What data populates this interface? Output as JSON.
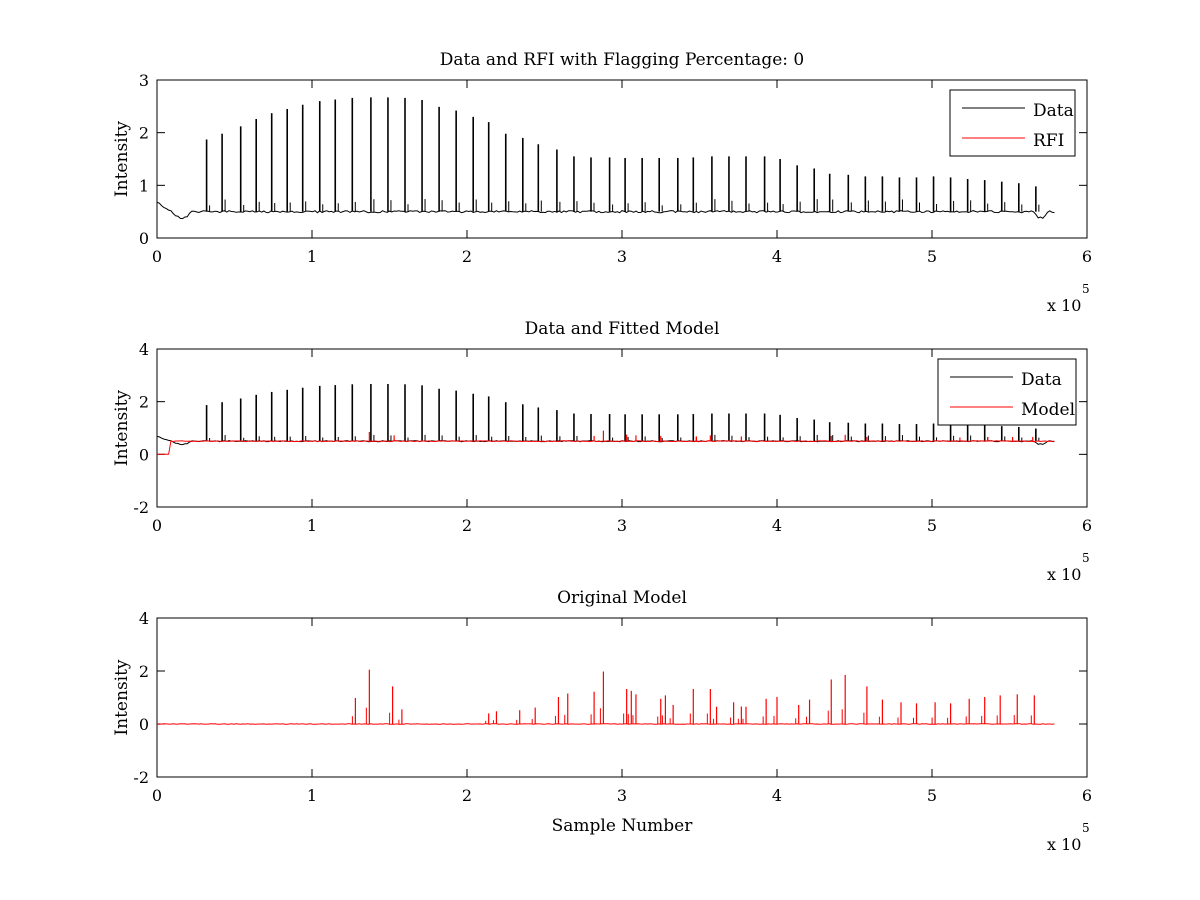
{
  "chart_data": [
    {
      "type": "line",
      "title": "Data and RFI with Flagging Percentage: 0",
      "xlabel": "",
      "ylabel": "Intensity",
      "xlim": [
        0,
        600000
      ],
      "ylim": [
        0,
        3
      ],
      "xticks": [
        "0",
        "1",
        "2",
        "3",
        "4",
        "5",
        "6"
      ],
      "yticks": [
        "0",
        "1",
        "2",
        "3"
      ],
      "x_multiplier_label": "x 10",
      "x_multiplier_exponent": "5",
      "grid": false,
      "legend_position": "top-right",
      "series": [
        {
          "name": "Data",
          "color": "#000000",
          "baseline": 0.5,
          "peaks": [
            {
              "x": 32000,
              "y": 1.87
            },
            {
              "x": 42000,
              "y": 1.98
            },
            {
              "x": 54000,
              "y": 2.12
            },
            {
              "x": 64000,
              "y": 2.26
            },
            {
              "x": 74000,
              "y": 2.37
            },
            {
              "x": 84000,
              "y": 2.45
            },
            {
              "x": 94000,
              "y": 2.53
            },
            {
              "x": 105000,
              "y": 2.6
            },
            {
              "x": 115000,
              "y": 2.63
            },
            {
              "x": 126000,
              "y": 2.66
            },
            {
              "x": 138000,
              "y": 2.67
            },
            {
              "x": 149000,
              "y": 2.67
            },
            {
              "x": 160000,
              "y": 2.66
            },
            {
              "x": 171000,
              "y": 2.62
            },
            {
              "x": 182000,
              "y": 2.49
            },
            {
              "x": 193000,
              "y": 2.42
            },
            {
              "x": 204000,
              "y": 2.3
            },
            {
              "x": 214000,
              "y": 2.2
            },
            {
              "x": 225000,
              "y": 1.98
            },
            {
              "x": 236000,
              "y": 1.9
            },
            {
              "x": 246000,
              "y": 1.78
            },
            {
              "x": 258000,
              "y": 1.68
            },
            {
              "x": 269000,
              "y": 1.55
            },
            {
              "x": 280000,
              "y": 1.53
            },
            {
              "x": 292000,
              "y": 1.53
            },
            {
              "x": 302000,
              "y": 1.52
            },
            {
              "x": 313000,
              "y": 1.52
            },
            {
              "x": 324000,
              "y": 1.52
            },
            {
              "x": 336000,
              "y": 1.52
            },
            {
              "x": 346000,
              "y": 1.53
            },
            {
              "x": 358000,
              "y": 1.55
            },
            {
              "x": 369000,
              "y": 1.55
            },
            {
              "x": 380000,
              "y": 1.55
            },
            {
              "x": 392000,
              "y": 1.55
            },
            {
              "x": 402000,
              "y": 1.5
            },
            {
              "x": 413000,
              "y": 1.38
            },
            {
              "x": 424000,
              "y": 1.32
            },
            {
              "x": 434000,
              "y": 1.22
            },
            {
              "x": 446000,
              "y": 1.2
            },
            {
              "x": 457000,
              "y": 1.17
            },
            {
              "x": 468000,
              "y": 1.17
            },
            {
              "x": 479000,
              "y": 1.15
            },
            {
              "x": 490000,
              "y": 1.15
            },
            {
              "x": 501000,
              "y": 1.17
            },
            {
              "x": 512000,
              "y": 1.15
            },
            {
              "x": 523000,
              "y": 1.12
            },
            {
              "x": 534000,
              "y": 1.1
            },
            {
              "x": 545000,
              "y": 1.07
            },
            {
              "x": 556000,
              "y": 1.04
            },
            {
              "x": 567000,
              "y": 0.98
            }
          ]
        },
        {
          "name": "RFI",
          "color": "#ff0000",
          "peaks": []
        }
      ]
    },
    {
      "type": "line",
      "title": "Data and Fitted Model",
      "xlabel": "",
      "ylabel": "Intensity",
      "xlim": [
        0,
        600000
      ],
      "ylim": [
        -2,
        4
      ],
      "xticks": [
        "0",
        "1",
        "2",
        "3",
        "4",
        "5",
        "6"
      ],
      "yticks": [
        "-2",
        "0",
        "2",
        "4"
      ],
      "x_multiplier_label": "x 10",
      "x_multiplier_exponent": "5",
      "grid": false,
      "legend_position": "top-right",
      "series": [
        {
          "name": "Data",
          "color": "#000000",
          "baseline": 0.5,
          "peaks": [
            {
              "x": 32000,
              "y": 1.87
            },
            {
              "x": 42000,
              "y": 1.98
            },
            {
              "x": 54000,
              "y": 2.12
            },
            {
              "x": 64000,
              "y": 2.26
            },
            {
              "x": 74000,
              "y": 2.37
            },
            {
              "x": 84000,
              "y": 2.45
            },
            {
              "x": 94000,
              "y": 2.53
            },
            {
              "x": 105000,
              "y": 2.6
            },
            {
              "x": 115000,
              "y": 2.63
            },
            {
              "x": 126000,
              "y": 2.66
            },
            {
              "x": 138000,
              "y": 2.67
            },
            {
              "x": 149000,
              "y": 2.67
            },
            {
              "x": 160000,
              "y": 2.66
            },
            {
              "x": 171000,
              "y": 2.62
            },
            {
              "x": 182000,
              "y": 2.49
            },
            {
              "x": 193000,
              "y": 2.42
            },
            {
              "x": 204000,
              "y": 2.3
            },
            {
              "x": 214000,
              "y": 2.2
            },
            {
              "x": 225000,
              "y": 1.98
            },
            {
              "x": 236000,
              "y": 1.9
            },
            {
              "x": 246000,
              "y": 1.78
            },
            {
              "x": 258000,
              "y": 1.68
            },
            {
              "x": 269000,
              "y": 1.55
            },
            {
              "x": 280000,
              "y": 1.53
            },
            {
              "x": 292000,
              "y": 1.53
            },
            {
              "x": 302000,
              "y": 1.52
            },
            {
              "x": 313000,
              "y": 1.52
            },
            {
              "x": 324000,
              "y": 1.52
            },
            {
              "x": 336000,
              "y": 1.52
            },
            {
              "x": 346000,
              "y": 1.53
            },
            {
              "x": 358000,
              "y": 1.55
            },
            {
              "x": 369000,
              "y": 1.55
            },
            {
              "x": 380000,
              "y": 1.55
            },
            {
              "x": 392000,
              "y": 1.55
            },
            {
              "x": 402000,
              "y": 1.5
            },
            {
              "x": 413000,
              "y": 1.38
            },
            {
              "x": 424000,
              "y": 1.32
            },
            {
              "x": 434000,
              "y": 1.22
            },
            {
              "x": 446000,
              "y": 1.2
            },
            {
              "x": 457000,
              "y": 1.17
            },
            {
              "x": 468000,
              "y": 1.17
            },
            {
              "x": 479000,
              "y": 1.15
            },
            {
              "x": 490000,
              "y": 1.15
            },
            {
              "x": 501000,
              "y": 1.17
            },
            {
              "x": 512000,
              "y": 1.15
            },
            {
              "x": 523000,
              "y": 1.12
            },
            {
              "x": 534000,
              "y": 1.1
            },
            {
              "x": 545000,
              "y": 1.07
            },
            {
              "x": 556000,
              "y": 1.04
            },
            {
              "x": 567000,
              "y": 0.98
            }
          ]
        },
        {
          "name": "Model",
          "color": "#ff0000",
          "baseline": 0.5,
          "peaks": [
            {
              "x": 137000,
              "y": 0.85
            },
            {
              "x": 153000,
              "y": 0.72
            },
            {
              "x": 282000,
              "y": 0.7
            },
            {
              "x": 288000,
              "y": 0.9
            },
            {
              "x": 303000,
              "y": 0.75
            },
            {
              "x": 309000,
              "y": 0.72
            },
            {
              "x": 325000,
              "y": 0.7
            },
            {
              "x": 348000,
              "y": 0.68
            },
            {
              "x": 357000,
              "y": 0.72
            },
            {
              "x": 377000,
              "y": 0.68
            },
            {
              "x": 435000,
              "y": 0.7
            },
            {
              "x": 444000,
              "y": 0.74
            },
            {
              "x": 458000,
              "y": 0.66
            },
            {
              "x": 518000,
              "y": 0.64
            },
            {
              "x": 536000,
              "y": 0.65
            },
            {
              "x": 552000,
              "y": 0.66
            },
            {
              "x": 565000,
              "y": 0.66
            }
          ]
        }
      ]
    },
    {
      "type": "line",
      "title": "Original Model",
      "xlabel": "Sample Number",
      "ylabel": "Intensity",
      "xlim": [
        0,
        600000
      ],
      "ylim": [
        -2,
        4
      ],
      "xticks": [
        "0",
        "1",
        "2",
        "3",
        "4",
        "5",
        "6"
      ],
      "yticks": [
        "-2",
        "0",
        "2",
        "4"
      ],
      "x_multiplier_label": "x 10",
      "x_multiplier_exponent": "5",
      "grid": false,
      "series": [
        {
          "color": "#ff0000",
          "baseline": 0,
          "peaks": [
            {
              "x": 128000,
              "y": 0.98
            },
            {
              "x": 137000,
              "y": 2.05
            },
            {
              "x": 152000,
              "y": 1.42
            },
            {
              "x": 158000,
              "y": 0.55
            },
            {
              "x": 214000,
              "y": 0.4
            },
            {
              "x": 219000,
              "y": 0.48
            },
            {
              "x": 234000,
              "y": 0.52
            },
            {
              "x": 244000,
              "y": 0.62
            },
            {
              "x": 259000,
              "y": 1.02
            },
            {
              "x": 265000,
              "y": 1.15
            },
            {
              "x": 282000,
              "y": 1.22
            },
            {
              "x": 288000,
              "y": 1.98
            },
            {
              "x": 303000,
              "y": 1.32
            },
            {
              "x": 306000,
              "y": 1.25
            },
            {
              "x": 309000,
              "y": 1.12
            },
            {
              "x": 325000,
              "y": 0.95
            },
            {
              "x": 328000,
              "y": 1.08
            },
            {
              "x": 333000,
              "y": 0.72
            },
            {
              "x": 346000,
              "y": 1.32
            },
            {
              "x": 357000,
              "y": 1.32
            },
            {
              "x": 361000,
              "y": 0.65
            },
            {
              "x": 372000,
              "y": 0.82
            },
            {
              "x": 377000,
              "y": 0.66
            },
            {
              "x": 380000,
              "y": 0.65
            },
            {
              "x": 393000,
              "y": 0.95
            },
            {
              "x": 400000,
              "y": 1.02
            },
            {
              "x": 414000,
              "y": 0.72
            },
            {
              "x": 421000,
              "y": 0.92
            },
            {
              "x": 435000,
              "y": 1.68
            },
            {
              "x": 444000,
              "y": 1.85
            },
            {
              "x": 458000,
              "y": 1.42
            },
            {
              "x": 468000,
              "y": 0.92
            },
            {
              "x": 480000,
              "y": 0.82
            },
            {
              "x": 490000,
              "y": 0.78
            },
            {
              "x": 502000,
              "y": 0.82
            },
            {
              "x": 512000,
              "y": 0.78
            },
            {
              "x": 524000,
              "y": 0.95
            },
            {
              "x": 534000,
              "y": 1.02
            },
            {
              "x": 544000,
              "y": 1.08
            },
            {
              "x": 555000,
              "y": 1.12
            },
            {
              "x": 566000,
              "y": 1.08
            }
          ]
        }
      ]
    }
  ]
}
